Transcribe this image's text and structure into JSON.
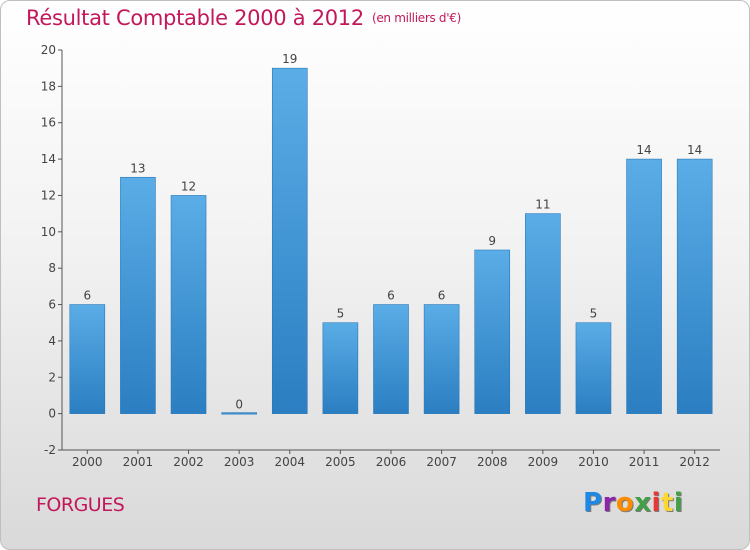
{
  "header": {
    "title": "Résultat Comptable 2000 à 2012",
    "unit": "(en milliers d'€)"
  },
  "footer": {
    "commune": "FORGUES",
    "logo_letters": [
      "P",
      "r",
      "o",
      "x",
      "i",
      "t",
      "i"
    ],
    "logo_colors": [
      "#1e88e5",
      "#8e24aa",
      "#fb8c00",
      "#43a047",
      "#e53935",
      "#fdd835",
      "#43a047"
    ]
  },
  "colors": {
    "bar_top": "#5aade6",
    "bar_bottom": "#2b7ec1",
    "axis": "#555555",
    "grid": "#ffffff"
  },
  "chart_data": {
    "type": "bar",
    "title": "Résultat Comptable 2000 à 2012",
    "subtitle": "(en milliers d'€)",
    "xlabel": "",
    "ylabel": "",
    "categories": [
      "2000",
      "2001",
      "2002",
      "2003",
      "2004",
      "2005",
      "2006",
      "2007",
      "2008",
      "2009",
      "2010",
      "2011",
      "2012"
    ],
    "values": [
      6,
      13,
      12,
      0,
      19,
      5,
      6,
      6,
      9,
      11,
      5,
      14,
      14
    ],
    "ylim": [
      -2,
      20
    ],
    "yticks": [
      -2,
      0,
      2,
      4,
      6,
      8,
      10,
      12,
      14,
      16,
      18,
      20
    ],
    "grid": false,
    "legend": "none"
  }
}
